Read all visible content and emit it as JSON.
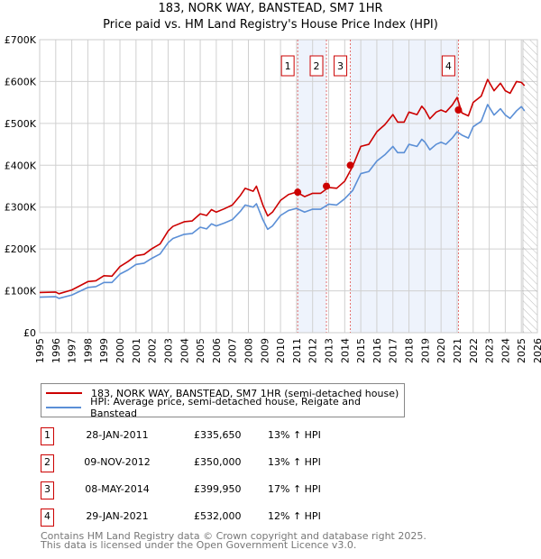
{
  "chart_data": {
    "type": "line",
    "title": "183, NORK WAY, BANSTEAD, SM7 1HR",
    "subtitle": "Price paid vs. HM Land Registry's House Price Index (HPI)",
    "xlim": [
      1995,
      2026
    ],
    "ylim": [
      0,
      700000
    ],
    "x_ticks": [
      "1995",
      "1996",
      "1997",
      "1998",
      "1999",
      "2000",
      "2001",
      "2002",
      "2003",
      "2004",
      "2005",
      "2006",
      "2007",
      "2008",
      "2009",
      "2010",
      "2011",
      "2012",
      "2013",
      "2014",
      "2015",
      "2016",
      "2017",
      "2018",
      "2019",
      "2020",
      "2021",
      "2022",
      "2023",
      "2024",
      "2025",
      "2026"
    ],
    "y_ticks": [
      {
        "v": 0,
        "label": "£0"
      },
      {
        "v": 100000,
        "label": "£100K"
      },
      {
        "v": 200000,
        "label": "£200K"
      },
      {
        "v": 300000,
        "label": "£300K"
      },
      {
        "v": 400000,
        "label": "£400K"
      },
      {
        "v": 500000,
        "label": "£500K"
      },
      {
        "v": 600000,
        "label": "£600K"
      },
      {
        "v": 700000,
        "label": "£700K"
      }
    ],
    "grid": true,
    "shaded_ranges": [
      [
        2011.07,
        2012.86
      ],
      [
        2014.35,
        2021.08
      ]
    ],
    "future_hatch_from": 2025.1,
    "series": [
      {
        "name": "183, NORK WAY, BANSTEAD, SM7 1HR (semi-detached house)",
        "color": "#cc0000",
        "x": [
          1995,
          1996,
          1996.2,
          1997,
          1998,
          1998.5,
          1999,
          1999.5,
          2000,
          2000.5,
          2001,
          2001.5,
          2002,
          2002.5,
          2003,
          2003.3,
          2004,
          2004.5,
          2005,
          2005.4,
          2005.7,
          2006,
          2006.5,
          2007,
          2007.5,
          2007.8,
          2008.3,
          2008.5,
          2008.9,
          2009.2,
          2009.5,
          2010,
          2010.5,
          2011,
          2011.5,
          2012,
          2012.5,
          2013,
          2013.5,
          2014,
          2014.5,
          2015,
          2015.5,
          2016,
          2016.5,
          2017,
          2017.3,
          2017.7,
          2018,
          2018.5,
          2018.8,
          2019,
          2019.3,
          2019.7,
          2020,
          2020.3,
          2020.7,
          2021,
          2021.3,
          2021.7,
          2022,
          2022.5,
          2022.9,
          2023.3,
          2023.7,
          2024,
          2024.3,
          2024.7,
          2025,
          2025.2
        ],
        "y": [
          96,
          97,
          93,
          102,
          122,
          124,
          136,
          135,
          158,
          170,
          184,
          187,
          201,
          212,
          243,
          254,
          265,
          267,
          284,
          280,
          294,
          288,
          296,
          305,
          328,
          345,
          338,
          350,
          305,
          279,
          288,
          316,
          330,
          336,
          325,
          333,
          333,
          347,
          345,
          362,
          398,
          445,
          450,
          480,
          497,
          521,
          503,
          503,
          527,
          521,
          541,
          532,
          511,
          527,
          532,
          527,
          544,
          562,
          525,
          518,
          550,
          565,
          605,
          578,
          596,
          578,
          572,
          600,
          598,
          590
        ]
      },
      {
        "name": "HPI: Average price, semi-detached house, Reigate and Banstead",
        "color": "#5b8fd6",
        "x": [
          1995,
          1996,
          1996.2,
          1997,
          1998,
          1998.5,
          1999,
          1999.5,
          2000,
          2000.5,
          2001,
          2001.5,
          2002,
          2002.5,
          2003,
          2003.3,
          2004,
          2004.5,
          2005,
          2005.4,
          2005.7,
          2006,
          2006.5,
          2007,
          2007.5,
          2007.8,
          2008.3,
          2008.5,
          2008.9,
          2009.2,
          2009.5,
          2010,
          2010.5,
          2011,
          2011.5,
          2012,
          2012.5,
          2013,
          2013.5,
          2014,
          2014.5,
          2015,
          2015.5,
          2016,
          2016.5,
          2017,
          2017.3,
          2017.7,
          2018,
          2018.5,
          2018.8,
          2019,
          2019.3,
          2019.7,
          2020,
          2020.3,
          2020.7,
          2021,
          2021.3,
          2021.7,
          2022,
          2022.5,
          2022.9,
          2023.3,
          2023.7,
          2024,
          2024.3,
          2024.7,
          2025,
          2025.2
        ],
        "y": [
          85,
          86,
          82,
          90,
          108,
          110,
          120,
          120,
          140,
          150,
          163,
          166,
          178,
          188,
          215,
          225,
          235,
          237,
          252,
          248,
          260,
          255,
          262,
          270,
          290,
          305,
          300,
          308,
          270,
          247,
          255,
          280,
          292,
          297,
          288,
          295,
          295,
          307,
          305,
          320,
          340,
          380,
          385,
          410,
          425,
          445,
          430,
          430,
          450,
          445,
          462,
          455,
          437,
          450,
          455,
          450,
          465,
          480,
          472,
          465,
          492,
          505,
          545,
          520,
          535,
          520,
          512,
          530,
          540,
          530
        ]
      }
    ],
    "y_units_note": "series y values in £K",
    "sales": [
      {
        "label": "1",
        "x": 2011.07,
        "y": 335.65,
        "date": "28-JAN-2011",
        "price": "£335,650",
        "hpi": "13% ↑ HPI"
      },
      {
        "label": "2",
        "x": 2012.86,
        "y": 350,
        "date": "09-NOV-2012",
        "price": "£350,000",
        "hpi": "13% ↑ HPI"
      },
      {
        "label": "3",
        "x": 2014.35,
        "y": 399.95,
        "date": "08-MAY-2014",
        "price": "£399,950",
        "hpi": "17% ↑ HPI"
      },
      {
        "label": "4",
        "x": 2021.08,
        "y": 532,
        "date": "29-JAN-2021",
        "price": "£532,000",
        "hpi": "12% ↑ HPI"
      }
    ]
  },
  "footer": {
    "line1": "Contains HM Land Registry data © Crown copyright and database right 2025.",
    "line2": "This data is licensed under the Open Government Licence v3.0."
  }
}
